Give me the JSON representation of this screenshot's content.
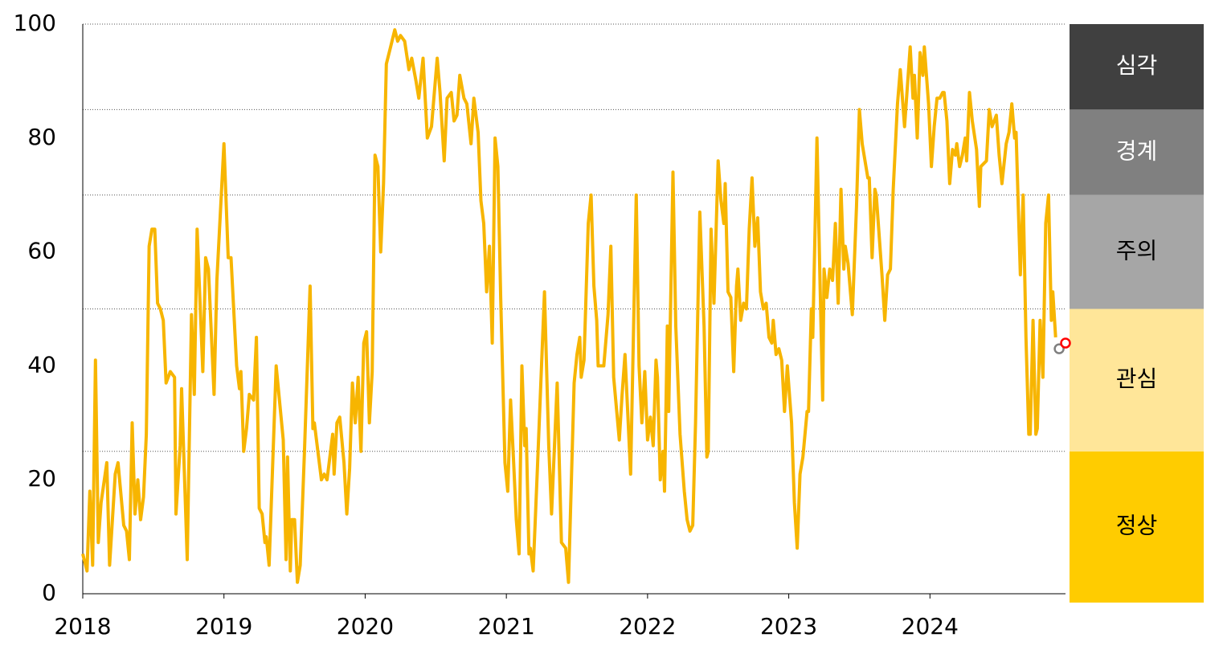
{
  "chart_data": {
    "type": "line",
    "xlim": [
      2018,
      2024.96
    ],
    "xticks": [
      2018,
      2019,
      2020,
      2021,
      2022,
      2023,
      2024
    ],
    "ylim": [
      0,
      100
    ],
    "yticks": [
      0,
      20,
      40,
      60,
      80,
      100
    ],
    "x": [
      2018.0,
      2018.03,
      2018.05,
      2018.07,
      2018.09,
      2018.11,
      2018.13,
      2018.17,
      2018.19,
      2018.23,
      2018.25,
      2018.29,
      2018.31,
      2018.33,
      2018.35,
      2018.37,
      2018.39,
      2018.41,
      2018.43,
      2018.45,
      2018.47,
      2018.49,
      2018.51,
      2018.53,
      2018.55,
      2018.57,
      2018.59,
      2018.62,
      2018.65,
      2018.66,
      2018.69,
      2018.7,
      2018.74,
      2018.77,
      2018.79,
      2018.81,
      2018.85,
      2018.87,
      2018.89,
      2018.93,
      2018.95,
      2019.0,
      2019.03,
      2019.05,
      2019.09,
      2019.11,
      2019.12,
      2019.14,
      2019.16,
      2019.18,
      2019.21,
      2019.23,
      2019.25,
      2019.27,
      2019.29,
      2019.3,
      2019.32,
      2019.37,
      2019.42,
      2019.44,
      2019.45,
      2019.47,
      2019.48,
      2019.5,
      2019.52,
      2019.54,
      2019.57,
      2019.61,
      2019.63,
      2019.64,
      2019.69,
      2019.71,
      2019.73,
      2019.77,
      2019.78,
      2019.8,
      2019.82,
      2019.85,
      2019.87,
      2019.89,
      2019.91,
      2019.93,
      2019.95,
      2019.97,
      2019.99,
      2020.01,
      2020.03,
      2020.05,
      2020.07,
      2020.09,
      2020.11,
      2020.13,
      2020.15,
      2020.18,
      2020.21,
      2020.23,
      2020.25,
      2020.28,
      2020.31,
      2020.33,
      2020.36,
      2020.38,
      2020.41,
      2020.44,
      2020.47,
      2020.51,
      2020.53,
      2020.56,
      2020.58,
      2020.61,
      2020.63,
      2020.65,
      2020.67,
      2020.7,
      2020.72,
      2020.75,
      2020.77,
      2020.8,
      2020.82,
      2020.84,
      2020.86,
      2020.88,
      2020.9,
      2020.92,
      2020.94,
      2020.96,
      2020.99,
      2021.01,
      2021.03,
      2021.05,
      2021.07,
      2021.09,
      2021.11,
      2021.13,
      2021.14,
      2021.16,
      2021.17,
      2021.19,
      2021.22,
      2021.27,
      2021.3,
      2021.32,
      2021.36,
      2021.39,
      2021.42,
      2021.44,
      2021.48,
      2021.5,
      2021.52,
      2021.53,
      2021.55,
      2021.58,
      2021.6,
      2021.62,
      2021.64,
      2021.65,
      2021.69,
      2021.72,
      2021.74,
      2021.76,
      2021.8,
      2021.82,
      2021.84,
      2021.88,
      2021.92,
      2021.94,
      2021.96,
      2021.98,
      2022.0,
      2022.02,
      2022.04,
      2022.06,
      2022.07,
      2022.09,
      2022.11,
      2022.12,
      2022.14,
      2022.15,
      2022.18,
      2022.2,
      2022.23,
      2022.26,
      2022.28,
      2022.3,
      2022.32,
      2022.34,
      2022.37,
      2022.4,
      2022.42,
      2022.43,
      2022.45,
      2022.47,
      2022.48,
      2022.5,
      2022.52,
      2022.54,
      2022.55,
      2022.57,
      2022.59,
      2022.61,
      2022.63,
      2022.64,
      2022.66,
      2022.68,
      2022.7,
      2022.72,
      2022.74,
      2022.76,
      2022.78,
      2022.8,
      2022.82,
      2022.84,
      2022.86,
      2022.88,
      2022.89,
      2022.91,
      2022.93,
      2022.95,
      2022.97,
      2022.99,
      2023.02,
      2023.04,
      2023.06,
      2023.08,
      2023.1,
      2023.13,
      2023.14,
      2023.16,
      2023.17,
      2023.2,
      2023.22,
      2023.24,
      2023.25,
      2023.27,
      2023.29,
      2023.31,
      2023.33,
      2023.35,
      2023.37,
      2023.39,
      2023.4,
      2023.42,
      2023.45,
      2023.48,
      2023.5,
      2023.52,
      2023.54,
      2023.56,
      2023.57,
      2023.59,
      2023.61,
      2023.62,
      2023.66,
      2023.68,
      2023.7,
      2023.72,
      2023.74,
      2023.77,
      2023.79,
      2023.82,
      2023.84,
      2023.86,
      2023.88,
      2023.89,
      2023.91,
      2023.93,
      2023.95,
      2023.96,
      2023.99,
      2024.01,
      2024.03,
      2024.05,
      2024.07,
      2024.09,
      2024.1,
      2024.12,
      2024.14,
      2024.16,
      2024.18,
      2024.19,
      2024.21,
      2024.23,
      2024.25,
      2024.26,
      2024.28,
      2024.3,
      2024.33,
      2024.35,
      2024.36,
      2024.4,
      2024.42,
      2024.44,
      2024.47,
      2024.49,
      2024.51,
      2024.54,
      2024.56,
      2024.58,
      2024.6,
      2024.61,
      2024.64,
      2024.66,
      2024.68,
      2024.7,
      2024.71,
      2024.73,
      2024.75,
      2024.76,
      2024.78,
      2024.8,
      2024.82,
      2024.84,
      2024.86,
      2024.87,
      2024.89
    ],
    "series": [
      {
        "color": "#f7b500",
        "values": [
          7,
          4,
          18,
          5,
          41,
          9,
          16,
          23,
          5,
          21,
          23,
          12,
          11,
          6,
          30,
          14,
          20,
          13,
          17,
          28,
          61,
          64,
          64,
          51,
          50,
          48,
          37,
          39,
          38,
          14,
          26,
          36,
          6,
          49,
          35,
          64,
          39,
          59,
          57,
          35,
          55,
          79,
          59,
          59,
          40,
          36,
          39,
          25,
          29,
          35,
          34,
          45,
          15,
          14,
          9,
          10,
          5,
          40,
          27,
          6,
          24,
          4,
          13,
          13,
          2,
          5,
          25,
          54,
          29,
          30,
          20,
          21,
          20,
          28,
          21,
          30,
          31,
          23,
          14,
          22,
          37,
          30,
          38,
          25,
          44,
          46,
          30,
          39,
          77,
          75,
          60,
          72,
          93,
          96,
          99,
          97,
          98,
          97,
          92,
          94,
          90,
          87,
          94,
          80,
          82,
          94,
          88,
          76,
          87,
          88,
          83,
          84,
          91,
          87,
          86,
          79,
          87,
          81,
          69,
          65,
          53,
          61,
          44,
          80,
          75,
          52,
          23,
          18,
          34,
          24,
          13,
          7,
          40,
          26,
          29,
          7,
          8,
          4,
          22,
          53,
          26,
          14,
          37,
          9,
          8,
          2,
          37,
          42,
          45,
          38,
          41,
          65,
          70,
          54,
          48,
          40,
          40,
          49,
          61,
          38,
          27,
          35,
          42,
          21,
          70,
          40,
          30,
          39,
          27,
          31,
          26,
          41,
          38,
          20,
          25,
          18,
          47,
          32,
          74,
          47,
          28,
          18,
          13,
          11,
          12,
          30,
          67,
          47,
          24,
          25,
          64,
          51,
          59,
          76,
          69,
          65,
          72,
          53,
          52,
          39,
          54,
          57,
          48,
          51,
          50,
          64,
          73,
          61,
          66,
          53,
          50,
          51,
          45,
          44,
          48,
          42,
          43,
          41,
          32,
          40,
          30,
          16,
          8,
          21,
          24,
          32,
          32,
          50,
          45,
          80,
          56,
          34,
          57,
          52,
          57,
          55,
          65,
          51,
          71,
          57,
          61,
          58,
          49,
          68,
          85,
          79,
          76,
          73,
          73,
          59,
          71,
          70,
          56,
          48,
          56,
          57,
          71,
          86,
          92,
          82,
          89,
          96,
          87,
          91,
          80,
          95,
          91,
          96,
          86,
          75,
          82,
          87,
          87,
          88,
          88,
          83,
          72,
          78,
          77,
          79,
          75,
          77,
          80,
          76,
          88,
          83,
          78,
          68,
          75,
          76,
          85,
          82,
          84,
          77,
          72,
          79,
          81,
          86,
          80,
          81,
          56,
          70,
          45,
          28,
          28,
          48,
          28,
          29,
          48,
          38,
          65,
          70,
          48,
          53,
          45
        ]
      }
    ],
    "markers": [
      {
        "x": 2024.915,
        "value": 43,
        "color": "#7f7f7f"
      },
      {
        "x": 2024.96,
        "value": 44,
        "color": "#ff0000"
      }
    ],
    "zones": [
      {
        "label": "정상",
        "from": 0,
        "to": 25,
        "color": "#ffcc00",
        "text_color": "#000000"
      },
      {
        "label": "관심",
        "from": 25,
        "to": 50,
        "color": "#ffe699",
        "text_color": "#000000"
      },
      {
        "label": "주의",
        "from": 50,
        "to": 70,
        "color": "#a6a6a6",
        "text_color": "#000000"
      },
      {
        "label": "경계",
        "from": 70,
        "to": 85,
        "color": "#808080",
        "text_color": "#ffffff"
      },
      {
        "label": "심각",
        "from": 85,
        "to": 100,
        "color": "#404040",
        "text_color": "#ffffff"
      }
    ]
  }
}
